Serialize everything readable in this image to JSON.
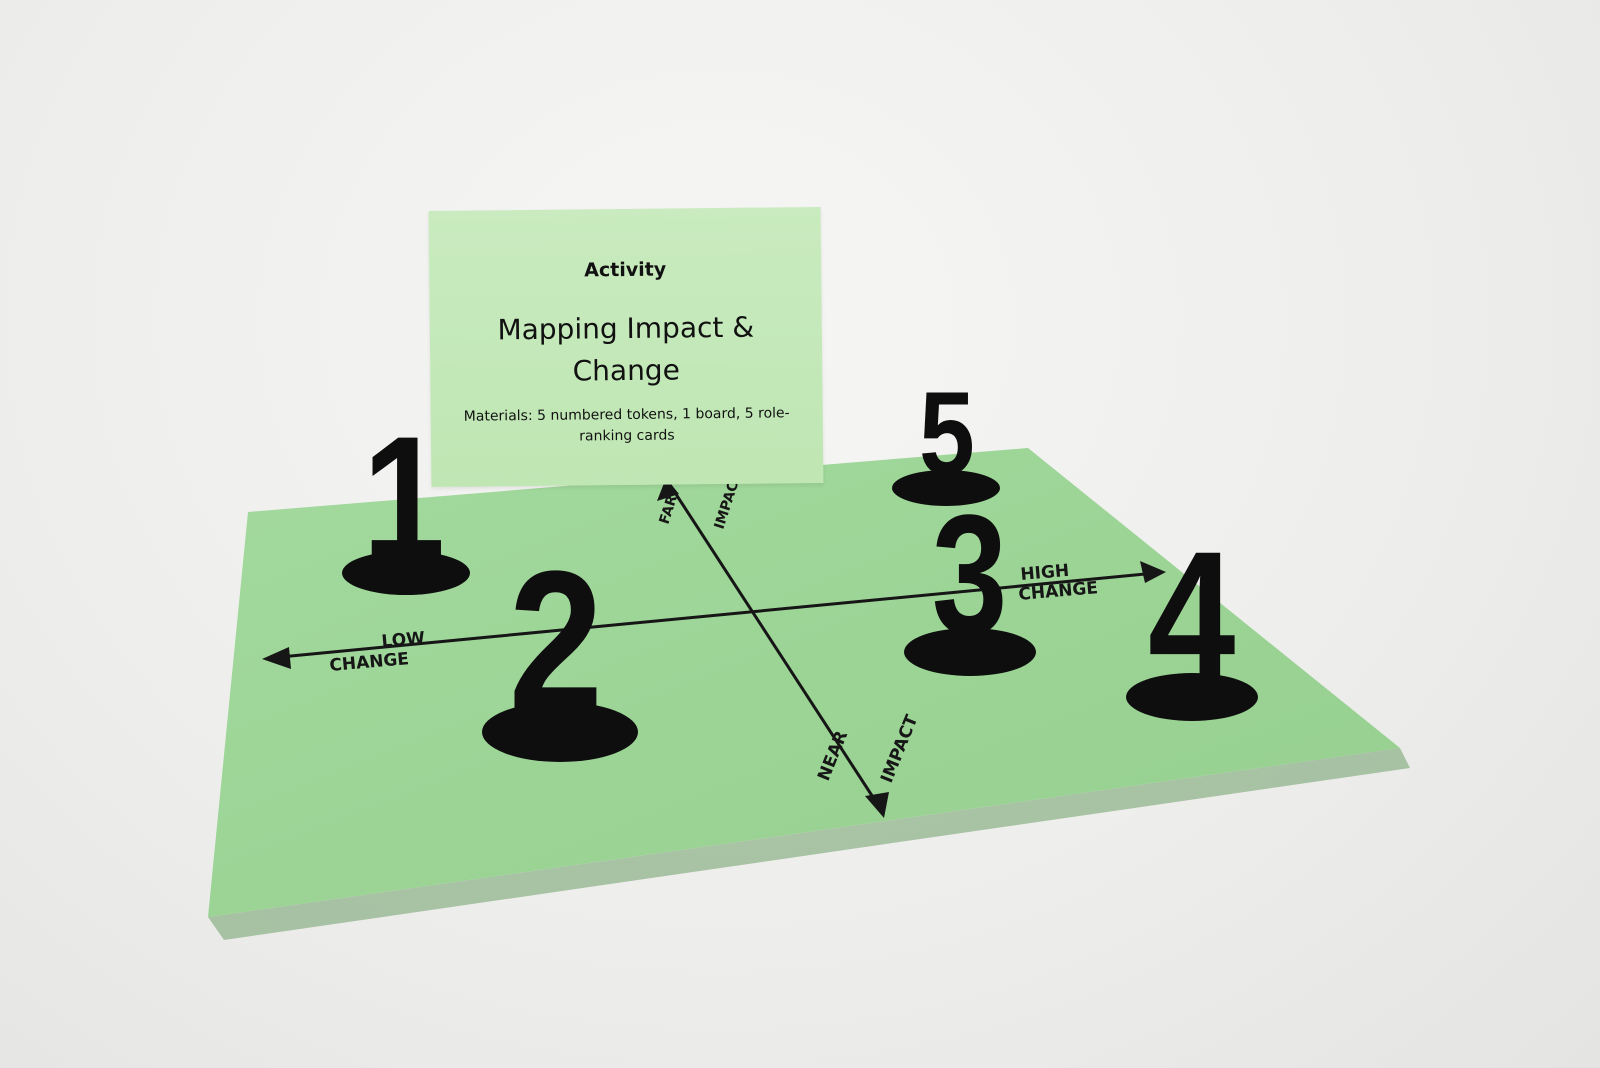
{
  "card": {
    "kicker": "Activity",
    "title": "Mapping Impact & Change",
    "materials": "Materials: 5 numbered tokens,  1 board, 5 role-ranking cards"
  },
  "board": {
    "far_label": "FAR",
    "top_impact_label": "IMPACT",
    "near_label": "NEAR",
    "bottom_impact_label": "IMPACT",
    "low_label": "LOW",
    "left_change_label": "CHANGE",
    "high_label": "HIGH",
    "right_change_label": "CHANGE"
  },
  "tokens": [
    "1",
    "2",
    "3",
    "4",
    "5"
  ],
  "colors": {
    "board": "#9ed69a",
    "card": "#c4e8b9",
    "token": "#0e0e0e",
    "background": "#eeeeec"
  }
}
